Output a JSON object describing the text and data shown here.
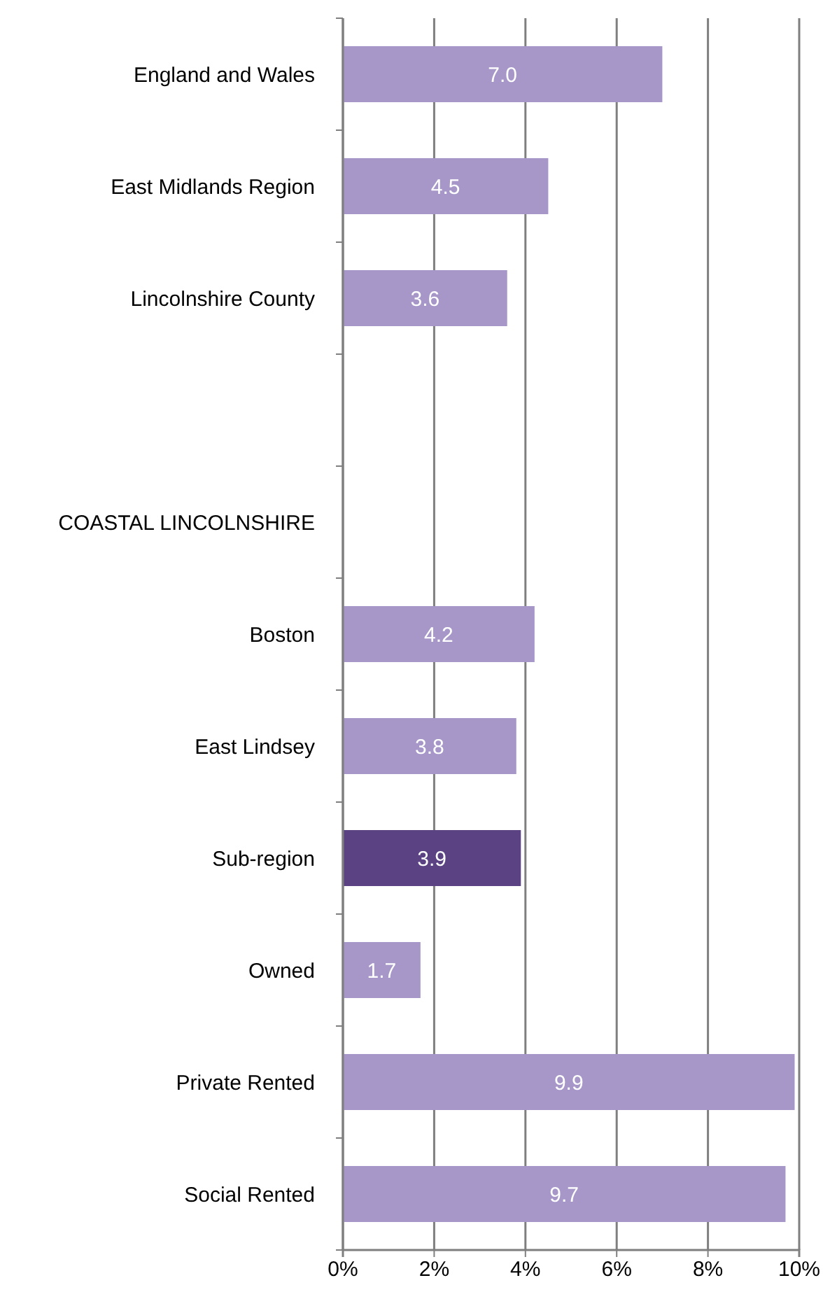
{
  "chart_data": {
    "type": "bar",
    "orientation": "horizontal",
    "categories": [
      "England and Wales",
      "East Midlands Region",
      "Lincolnshire County",
      null,
      "COASTAL LINCOLNSHIRE",
      "Boston",
      "East Lindsey",
      "Sub-region",
      "Owned",
      "Private Rented",
      "Social Rented"
    ],
    "values": [
      7.0,
      4.5,
      3.6,
      null,
      null,
      4.2,
      3.8,
      3.9,
      1.7,
      9.9,
      9.7
    ],
    "colors": [
      "#a797c9",
      "#a797c9",
      "#a797c9",
      null,
      null,
      "#a797c9",
      "#a797c9",
      "#5b4282",
      "#a797c9",
      "#a797c9",
      "#a797c9"
    ],
    "value_labels": [
      "7.0",
      "4.5",
      "3.6",
      null,
      null,
      "4.2",
      "3.8",
      "3.9",
      "1.7",
      "9.9",
      "9.7"
    ],
    "xlim": [
      0,
      10
    ],
    "xticks": [
      {
        "value": 0,
        "label": "0%"
      },
      {
        "value": 2,
        "label": "2%"
      },
      {
        "value": 4,
        "label": "4%"
      },
      {
        "value": 6,
        "label": "6%"
      },
      {
        "value": 8,
        "label": "8%"
      },
      {
        "value": 10,
        "label": "10%"
      }
    ],
    "grid": "x"
  }
}
